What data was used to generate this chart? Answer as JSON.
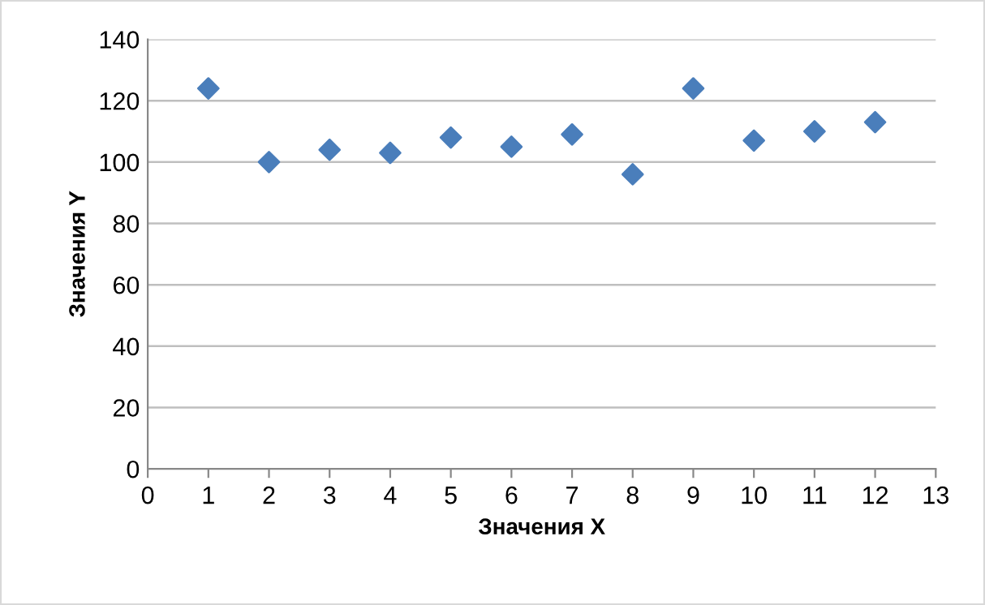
{
  "chart_data": {
    "type": "scatter",
    "xlabel": "Значения X",
    "ylabel": "Значения Y",
    "x": [
      1,
      2,
      3,
      4,
      5,
      6,
      7,
      8,
      9,
      10,
      11,
      12
    ],
    "series": [
      {
        "color": "#4a7ebb",
        "values": [
          124,
          100,
          104,
          103,
          108,
          105,
          109,
          96,
          124,
          107,
          110,
          113
        ]
      }
    ],
    "xlim": [
      0,
      13
    ],
    "xticks": [
      0,
      1,
      2,
      3,
      4,
      5,
      6,
      7,
      8,
      9,
      10,
      11,
      12,
      13
    ],
    "ylim": [
      0,
      140
    ],
    "yticks": [
      0,
      20,
      40,
      60,
      80,
      100,
      120,
      140
    ],
    "grid": "y",
    "marker": "diamond",
    "legend": false
  }
}
